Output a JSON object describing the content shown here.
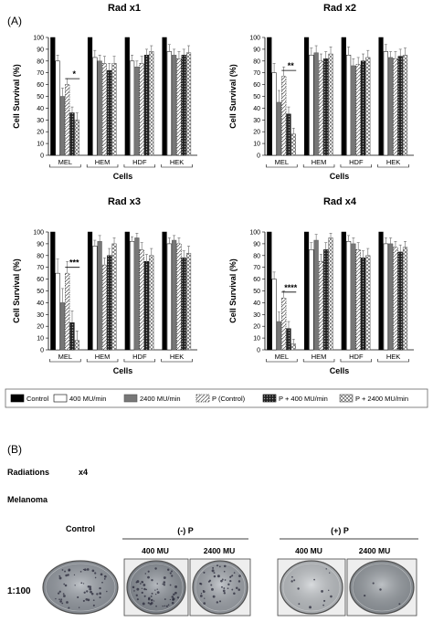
{
  "panel_a_label": "(A)",
  "panel_b_label": "(B)",
  "patterns": {
    "Control": "solid-black",
    "400 MU/min": "white",
    "2400 MU/min": "solid-gray",
    "P (Control)": "white-dashed",
    "P + 400 MU/min": "dotted-dark",
    "P + 2400 MU/min": "crosshatch"
  },
  "legend": [
    "Control",
    "400 MU/min",
    "2400 MU/min",
    "P (Control)",
    "P + 400 MU/min",
    "P + 2400 MU/min"
  ],
  "chart_data": [
    {
      "type": "bar",
      "title": "Rad x1",
      "xlabel": "Cells",
      "ylabel": "Cell Survival (%)",
      "ylim": [
        0,
        100
      ],
      "yticks": [
        0,
        10,
        20,
        30,
        40,
        50,
        60,
        70,
        80,
        90,
        100
      ],
      "categories": [
        "MEL",
        "HEM",
        "HDF",
        "HEK"
      ],
      "significance": "*",
      "series": [
        {
          "name": "Control",
          "values": [
            100,
            100,
            100,
            100
          ],
          "errors": [
            0,
            0,
            0,
            0
          ]
        },
        {
          "name": "400 MU/min",
          "values": [
            80,
            83,
            80,
            88
          ],
          "errors": [
            5,
            6,
            5,
            6
          ]
        },
        {
          "name": "2400 MU/min",
          "values": [
            50,
            80,
            75,
            85
          ],
          "errors": [
            7,
            5,
            5,
            5
          ]
        },
        {
          "name": "P (Control)",
          "values": [
            60,
            78,
            78,
            82
          ],
          "errors": [
            5,
            6,
            6,
            6
          ]
        },
        {
          "name": "P + 400 MU/min",
          "values": [
            36,
            72,
            85,
            85
          ],
          "errors": [
            5,
            6,
            5,
            5
          ]
        },
        {
          "name": "P + 2400 MU/min",
          "values": [
            30,
            78,
            88,
            87
          ],
          "errors": [
            6,
            6,
            5,
            6
          ]
        }
      ]
    },
    {
      "type": "bar",
      "title": "Rad x2",
      "xlabel": "Cells",
      "ylabel": "Cell Survival (%)",
      "ylim": [
        0,
        100
      ],
      "yticks": [
        0,
        10,
        20,
        30,
        40,
        50,
        60,
        70,
        80,
        90,
        100
      ],
      "categories": [
        "MEL",
        "HEM",
        "HDF",
        "HEK"
      ],
      "significance": "**",
      "series": [
        {
          "name": "Control",
          "values": [
            100,
            100,
            100,
            100
          ],
          "errors": [
            0,
            0,
            0,
            0
          ]
        },
        {
          "name": "400 MU/min",
          "values": [
            70,
            85,
            85,
            88
          ],
          "errors": [
            8,
            6,
            7,
            6
          ]
        },
        {
          "name": "2400 MU/min",
          "values": [
            45,
            87,
            76,
            83
          ],
          "errors": [
            10,
            6,
            6,
            5
          ]
        },
        {
          "name": "P (Control)",
          "values": [
            67,
            80,
            77,
            82
          ],
          "errors": [
            8,
            6,
            6,
            6
          ]
        },
        {
          "name": "P + 400 MU/min",
          "values": [
            35,
            82,
            80,
            84
          ],
          "errors": [
            6,
            6,
            6,
            6
          ]
        },
        {
          "name": "P + 2400 MU/min",
          "values": [
            18,
            86,
            83,
            85
          ],
          "errors": [
            5,
            6,
            6,
            6
          ]
        }
      ]
    },
    {
      "type": "bar",
      "title": "Rad x3",
      "xlabel": "Cells",
      "ylabel": "Cell Survival (%)",
      "ylim": [
        0,
        100
      ],
      "yticks": [
        0,
        10,
        20,
        30,
        40,
        50,
        60,
        70,
        80,
        90,
        100
      ],
      "categories": [
        "MEL",
        "HEM",
        "HDF",
        "HEK"
      ],
      "significance": "***",
      "series": [
        {
          "name": "Control",
          "values": [
            100,
            100,
            100,
            100
          ],
          "errors": [
            0,
            0,
            0,
            0
          ]
        },
        {
          "name": "400 MU/min",
          "values": [
            65,
            88,
            92,
            90
          ],
          "errors": [
            12,
            5,
            4,
            5
          ]
        },
        {
          "name": "2400 MU/min",
          "values": [
            40,
            92,
            95,
            93
          ],
          "errors": [
            12,
            5,
            4,
            4
          ]
        },
        {
          "name": "P (Control)",
          "values": [
            65,
            72,
            85,
            90
          ],
          "errors": [
            10,
            6,
            6,
            5
          ]
        },
        {
          "name": "P + 400 MU/min",
          "values": [
            23,
            80,
            75,
            78
          ],
          "errors": [
            10,
            6,
            6,
            6
          ]
        },
        {
          "name": "P + 2400 MU/min",
          "values": [
            8,
            90,
            80,
            82
          ],
          "errors": [
            8,
            5,
            6,
            6
          ]
        }
      ]
    },
    {
      "type": "bar",
      "title": "Rad x4",
      "xlabel": "Cells",
      "ylabel": "Cell Survival (%)",
      "ylim": [
        0,
        100
      ],
      "yticks": [
        0,
        10,
        20,
        30,
        40,
        50,
        60,
        70,
        80,
        90,
        100
      ],
      "categories": [
        "MEL",
        "HEM",
        "HDF",
        "HEK"
      ],
      "significance": "****",
      "series": [
        {
          "name": "Control",
          "values": [
            100,
            100,
            100,
            100
          ],
          "errors": [
            0,
            0,
            0,
            0
          ]
        },
        {
          "name": "400 MU/min",
          "values": [
            60,
            85,
            92,
            90
          ],
          "errors": [
            6,
            6,
            5,
            5
          ]
        },
        {
          "name": "2400 MU/min",
          "values": [
            24,
            93,
            90,
            90
          ],
          "errors": [
            8,
            5,
            5,
            5
          ]
        },
        {
          "name": "P (Control)",
          "values": [
            44,
            75,
            85,
            87
          ],
          "errors": [
            6,
            6,
            6,
            5
          ]
        },
        {
          "name": "P + 400 MU/min",
          "values": [
            18,
            85,
            78,
            83
          ],
          "errors": [
            6,
            6,
            6,
            6
          ]
        },
        {
          "name": "P + 2400 MU/min",
          "values": [
            5,
            95,
            80,
            87
          ],
          "errors": [
            4,
            4,
            6,
            5
          ]
        }
      ]
    }
  ],
  "panel_b": {
    "radiations_label": "Radiations",
    "radiations_value": "x4",
    "cell_line": "Melanoma",
    "dilution": "1:100",
    "control_label": "Control",
    "minus_p_label": "(-) P",
    "plus_p_label": "(+) P",
    "dose_400_label": "400 MU",
    "dose_2400_label": "2400 MU",
    "dishes": [
      {
        "group": "Control",
        "dose": "",
        "tone": "#9aa0a8",
        "dots": 55,
        "seed": 11
      },
      {
        "group": "(-) P",
        "dose": "400 MU",
        "tone": "#8e949c",
        "dots": 60,
        "seed": 23
      },
      {
        "group": "(-) P",
        "dose": "2400 MU",
        "tone": "#a4a9b0",
        "dots": 45,
        "seed": 37
      },
      {
        "group": "(+) P",
        "dose": "400 MU",
        "tone": "#c4c8cc",
        "dots": 14,
        "seed": 41
      },
      {
        "group": "(+) P",
        "dose": "2400 MU",
        "tone": "#9aa0a6",
        "dots": 4,
        "seed": 53
      }
    ]
  }
}
